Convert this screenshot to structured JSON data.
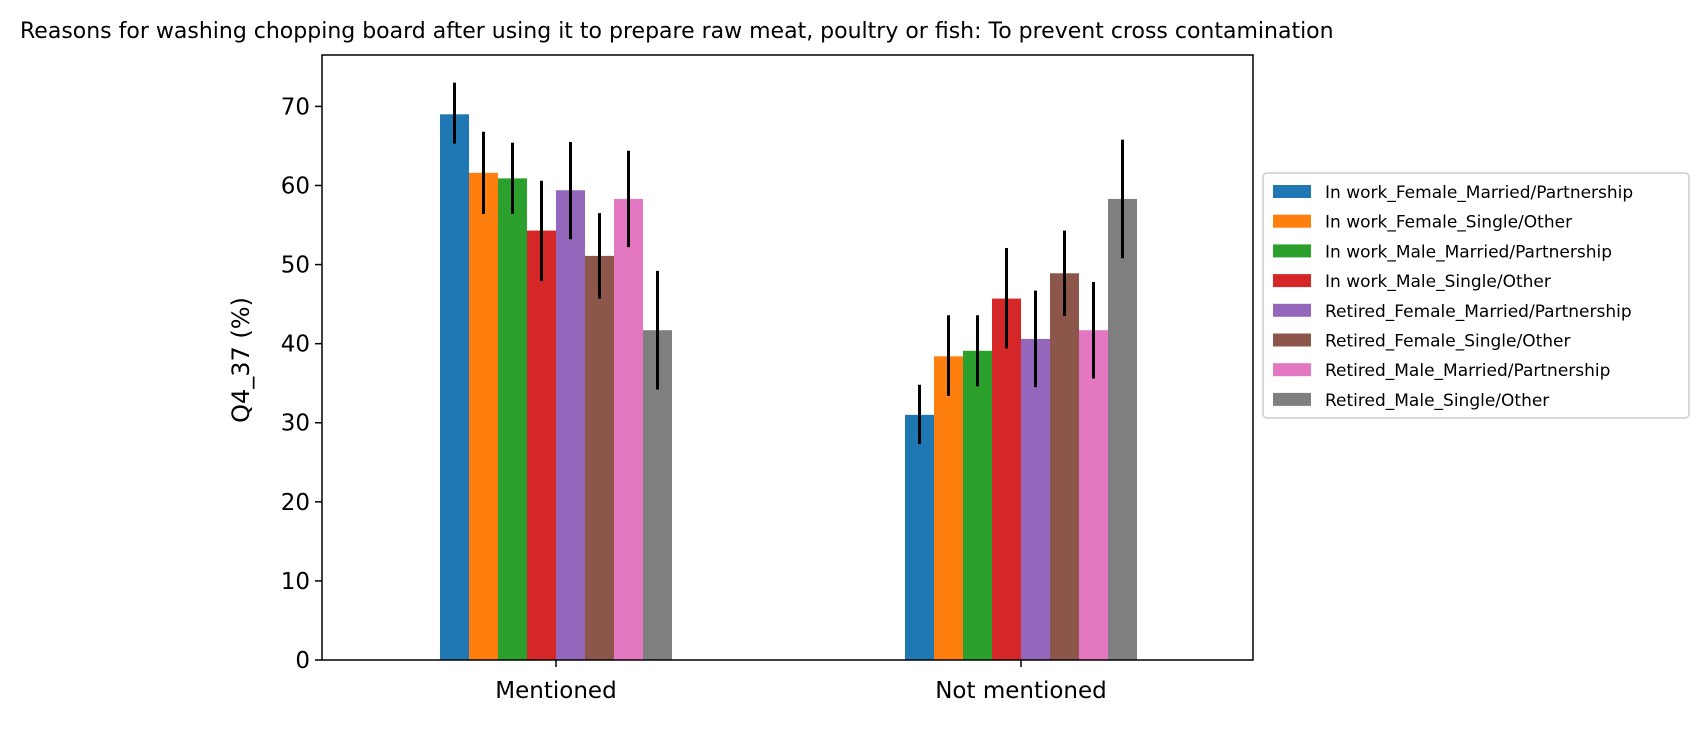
{
  "chart_data": {
    "type": "bar",
    "title": "Reasons for washing chopping board after using it to prepare raw meat, poultry or fish: To prevent cross contamination",
    "ylabel": "Q4_37 (%)",
    "xlabel": "",
    "ylim": [
      0,
      76.5
    ],
    "yticks": [
      0,
      10,
      20,
      30,
      40,
      50,
      60,
      70
    ],
    "categories": [
      "Mentioned",
      "Not mentioned"
    ],
    "error_bars": true,
    "legend_position": "right",
    "series": [
      {
        "name": "In work_Female_Married/Partnership",
        "color": "#1f77b4",
        "values": [
          69.0,
          31.0
        ],
        "err_low": [
          65.3,
          27.3
        ],
        "err_high": [
          73.0,
          34.8
        ]
      },
      {
        "name": "In work_Female_Single/Other",
        "color": "#ff7f0e",
        "values": [
          61.6,
          38.4
        ],
        "err_low": [
          56.4,
          33.4
        ],
        "err_high": [
          66.8,
          43.6
        ]
      },
      {
        "name": "In work_Male_Married/Partnership",
        "color": "#2ca02c",
        "values": [
          60.9,
          39.1
        ],
        "err_low": [
          56.4,
          34.6
        ],
        "err_high": [
          65.4,
          43.6
        ]
      },
      {
        "name": "In work_Male_Single/Other",
        "color": "#d62728",
        "values": [
          54.3,
          45.7
        ],
        "err_low": [
          47.9,
          39.4
        ],
        "err_high": [
          60.6,
          52.1
        ]
      },
      {
        "name": "Retired_Female_Married/Partnership",
        "color": "#9467bd",
        "values": [
          59.4,
          40.6
        ],
        "err_low": [
          53.2,
          34.5
        ],
        "err_high": [
          65.5,
          46.7
        ]
      },
      {
        "name": "Retired_Female_Single/Other",
        "color": "#8c564b",
        "values": [
          51.1,
          48.9
        ],
        "err_low": [
          45.7,
          43.5
        ],
        "err_high": [
          56.5,
          54.3
        ]
      },
      {
        "name": "Retired_Male_Married/Partnership",
        "color": "#e377c2",
        "values": [
          58.3,
          41.7
        ],
        "err_low": [
          52.2,
          35.6
        ],
        "err_high": [
          64.4,
          47.8
        ]
      },
      {
        "name": "Retired_Male_Single/Other",
        "color": "#7f7f7f",
        "values": [
          41.7,
          58.3
        ],
        "err_low": [
          34.2,
          50.8
        ],
        "err_high": [
          49.2,
          65.8
        ]
      }
    ]
  }
}
